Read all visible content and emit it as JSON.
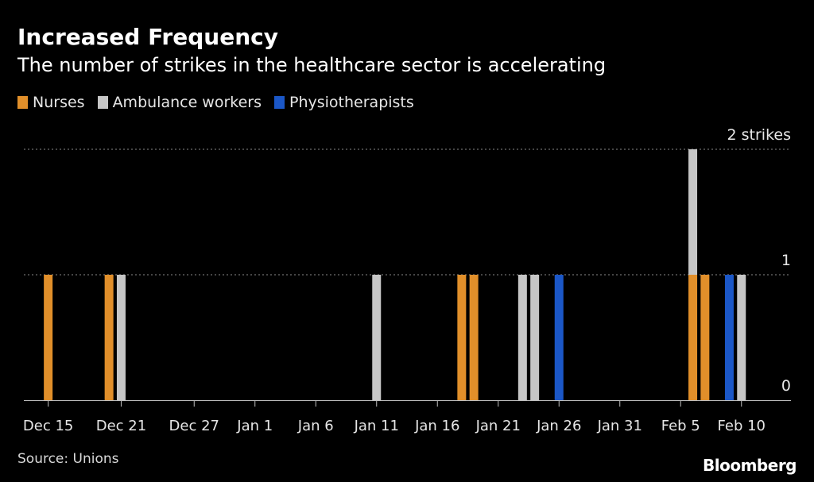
{
  "title": "Increased Frequency",
  "subtitle": "The number of strikes in the healthcare sector is accelerating",
  "source": "Source: Unions",
  "brand": "Bloomberg",
  "colors": {
    "Nurses": "#e18f2a",
    "Ambulance workers": "#c6c6c6",
    "Physiotherapists": "#1b57c7"
  },
  "chart_data": {
    "type": "bar",
    "title": "Increased Frequency",
    "subtitle": "The number of strikes in the healthcare sector is accelerating",
    "x_start": "Dec 13",
    "x_end": "Feb 13",
    "ylim": [
      0,
      2
    ],
    "y_ticks": [
      "0",
      "1",
      "2 strikes"
    ],
    "y_tick_values": [
      0,
      1,
      2
    ],
    "x_tick_labels": [
      "Dec 15",
      "Dec 21",
      "Dec 27",
      "Jan 1",
      "Jan 6",
      "Jan 11",
      "Jan 16",
      "Jan 21",
      "Jan 26",
      "Jan 31",
      "Feb 5",
      "Feb 10"
    ],
    "grid": true,
    "legend": [
      "Nurses",
      "Ambulance workers",
      "Physiotherapists"
    ],
    "legend_position": "top-left",
    "stacked": true,
    "points": [
      {
        "date": "Dec 15",
        "series": "Nurses",
        "value": 1
      },
      {
        "date": "Dec 20",
        "series": "Nurses",
        "value": 1
      },
      {
        "date": "Dec 21",
        "series": "Ambulance workers",
        "value": 1
      },
      {
        "date": "Jan 11",
        "series": "Ambulance workers",
        "value": 1
      },
      {
        "date": "Jan 18",
        "series": "Nurses",
        "value": 1
      },
      {
        "date": "Jan 19",
        "series": "Nurses",
        "value": 1
      },
      {
        "date": "Jan 23",
        "series": "Ambulance workers",
        "value": 1
      },
      {
        "date": "Jan 24",
        "series": "Ambulance workers",
        "value": 1
      },
      {
        "date": "Jan 26",
        "series": "Physiotherapists",
        "value": 1
      },
      {
        "date": "Feb 6",
        "series": "Nurses",
        "value": 1
      },
      {
        "date": "Feb 6",
        "series": "Ambulance workers",
        "value": 1
      },
      {
        "date": "Feb 7",
        "series": "Nurses",
        "value": 1
      },
      {
        "date": "Feb 9",
        "series": "Physiotherapists",
        "value": 1
      },
      {
        "date": "Feb 10",
        "series": "Ambulance workers",
        "value": 1
      }
    ]
  }
}
